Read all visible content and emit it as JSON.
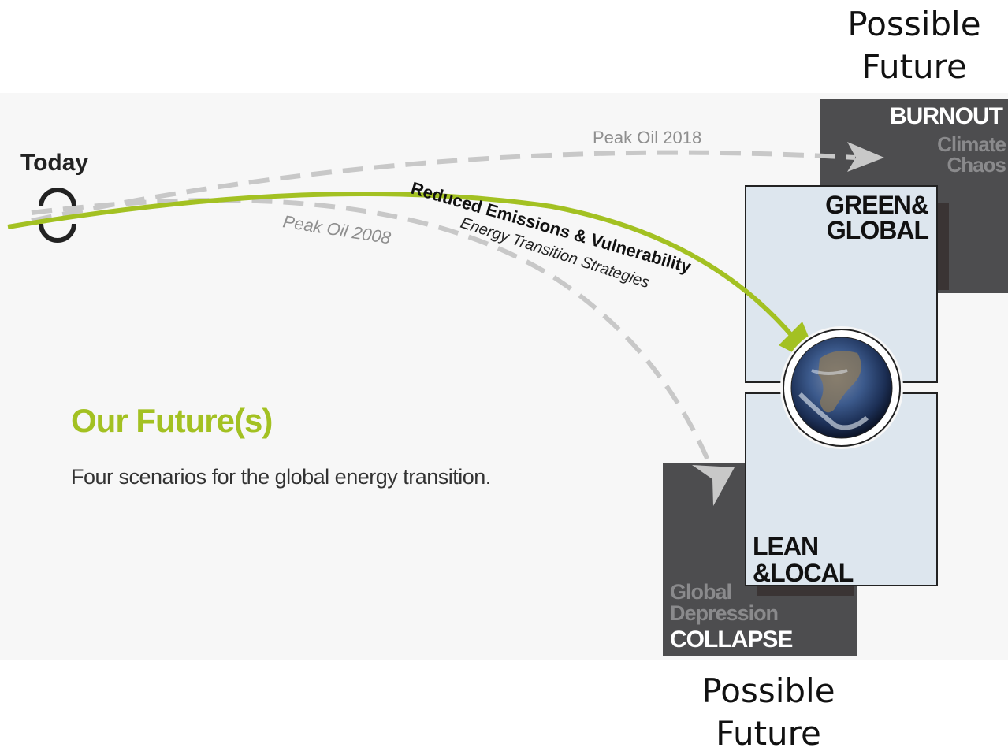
{
  "captions": {
    "top": "Possible\nFuture",
    "bottom": "Possible\nFuture"
  },
  "today_label": "Today",
  "paths": {
    "peak_oil_2018": "Peak Oil 2018",
    "peak_oil_2008": "Peak Oil 2008",
    "reduced": "Reduced Emissions & Vulnerability",
    "energy": "Energy Transition Strategies"
  },
  "scenarios": {
    "burnout": {
      "title": "BURNOUT",
      "subtitle": "Climate\nChaos"
    },
    "green_global": {
      "title": "GREEN&\nGLOBAL"
    },
    "lean_local": {
      "title": "LEAN\n&LOCAL"
    },
    "collapse": {
      "title": "COLLAPSE",
      "subtitle": "Global\nDepression"
    }
  },
  "heading": {
    "title": "Our Future(s)",
    "subtitle": "Four scenarios for the global energy transition."
  },
  "colors": {
    "accent": "#a3c122",
    "dashed": "#c8c8c8",
    "dark_box": "#4d4d4f",
    "light_box": "#dde6ee"
  }
}
